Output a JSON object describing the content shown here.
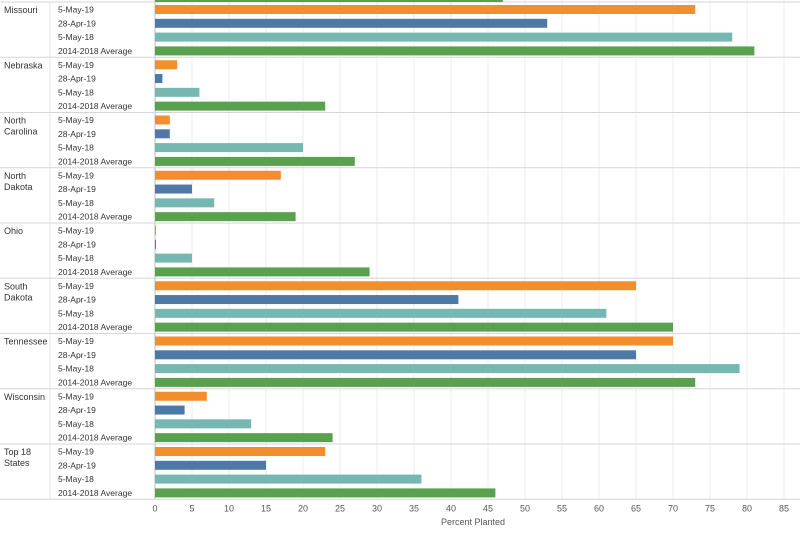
{
  "chart_data": {
    "type": "bar",
    "orientation": "horizontal",
    "xlabel": "Percent Planted",
    "xlim": [
      0,
      85
    ],
    "x_ticks": [
      0,
      5,
      10,
      15,
      20,
      25,
      30,
      35,
      40,
      45,
      50,
      55,
      60,
      65,
      70,
      75,
      80,
      85
    ],
    "grid": "vertical",
    "colors": {
      "5-May-19": "#f28e2b",
      "28-Apr-19": "#4e79a7",
      "5-May-18": "#76b7b2",
      "2014-2018 Average": "#59a14f"
    },
    "top_partial_bar": {
      "series": "2014-2018 Average",
      "value": 47
    },
    "groups": [
      {
        "state": "Missouri",
        "bars": [
          {
            "label": "5-May-19",
            "value": 73
          },
          {
            "label": "28-Apr-19",
            "value": 53
          },
          {
            "label": "5-May-18",
            "value": 78
          },
          {
            "label": "2014-2018 Average",
            "value": 81
          }
        ]
      },
      {
        "state": "Nebraska",
        "bars": [
          {
            "label": "5-May-19",
            "value": 3
          },
          {
            "label": "28-Apr-19",
            "value": 1
          },
          {
            "label": "5-May-18",
            "value": 6
          },
          {
            "label": "2014-2018 Average",
            "value": 23
          }
        ]
      },
      {
        "state": "North Carolina",
        "bars": [
          {
            "label": "5-May-19",
            "value": 2
          },
          {
            "label": "28-Apr-19",
            "value": 2
          },
          {
            "label": "5-May-18",
            "value": 20
          },
          {
            "label": "2014-2018 Average",
            "value": 27
          }
        ]
      },
      {
        "state": "North Dakota",
        "bars": [
          {
            "label": "5-May-19",
            "value": 17
          },
          {
            "label": "28-Apr-19",
            "value": 5
          },
          {
            "label": "5-May-18",
            "value": 8
          },
          {
            "label": "2014-2018 Average",
            "value": 19
          }
        ]
      },
      {
        "state": "Ohio",
        "bars": [
          {
            "label": "5-May-19",
            "value": 0
          },
          {
            "label": "28-Apr-19",
            "value": 0
          },
          {
            "label": "5-May-18",
            "value": 5
          },
          {
            "label": "2014-2018 Average",
            "value": 29
          }
        ]
      },
      {
        "state": "South Dakota",
        "bars": [
          {
            "label": "5-May-19",
            "value": 65
          },
          {
            "label": "28-Apr-19",
            "value": 41
          },
          {
            "label": "5-May-18",
            "value": 61
          },
          {
            "label": "2014-2018 Average",
            "value": 70
          }
        ]
      },
      {
        "state": "Tennessee",
        "bars": [
          {
            "label": "5-May-19",
            "value": 70
          },
          {
            "label": "28-Apr-19",
            "value": 65
          },
          {
            "label": "5-May-18",
            "value": 79
          },
          {
            "label": "2014-2018 Average",
            "value": 73
          }
        ]
      },
      {
        "state": "Wisconsin",
        "bars": [
          {
            "label": "5-May-19",
            "value": 7
          },
          {
            "label": "28-Apr-19",
            "value": 4
          },
          {
            "label": "5-May-18",
            "value": 13
          },
          {
            "label": "2014-2018 Average",
            "value": 24
          }
        ]
      },
      {
        "state": "Top 18 States",
        "bars": [
          {
            "label": "5-May-19",
            "value": 23
          },
          {
            "label": "28-Apr-19",
            "value": 15
          },
          {
            "label": "5-May-18",
            "value": 36
          },
          {
            "label": "2014-2018 Average",
            "value": 46
          }
        ]
      }
    ]
  }
}
